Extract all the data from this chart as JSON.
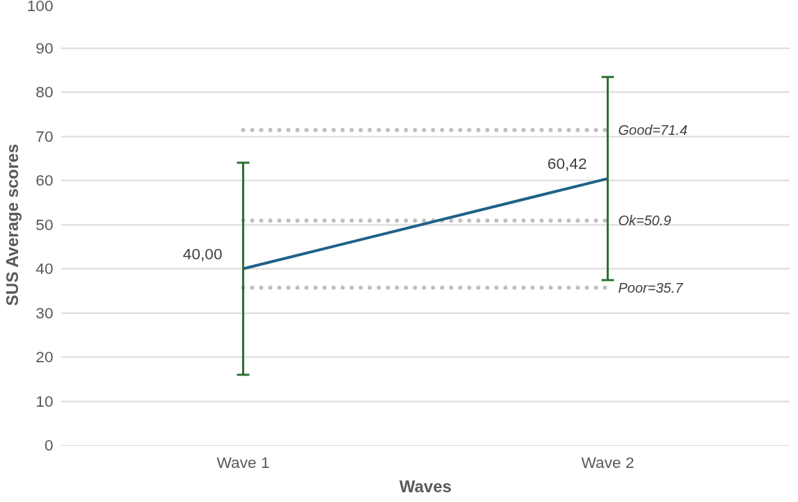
{
  "chart_data": {
    "type": "line",
    "xlabel": "Waves",
    "ylabel": "SUS Average scores",
    "categories": [
      "Wave 1",
      "Wave 2"
    ],
    "series": [
      {
        "color": "#1f6088",
        "values": [
          40.0,
          60.42
        ],
        "value_labels": [
          "40,00",
          "60,42"
        ],
        "errors": [
          24,
          23
        ]
      }
    ],
    "ylim": [
      0,
      100
    ],
    "yticks": [
      0,
      10,
      20,
      30,
      40,
      50,
      60,
      70,
      80,
      90,
      100
    ],
    "grid": "y",
    "marker": "none",
    "line_style": "solid",
    "ref_lines": [
      {
        "axis": "y",
        "value": 71.4,
        "label": "Good=71.4",
        "color": "#bfbfbf",
        "line_style": "dotted"
      },
      {
        "axis": "y",
        "value": 50.9,
        "label": "Ok=50.9",
        "color": "#bfbfbf",
        "line_style": "dotted"
      },
      {
        "axis": "y",
        "value": 35.7,
        "label": "Poor=35.7",
        "color": "#bfbfbf",
        "line_style": "dotted"
      }
    ]
  }
}
